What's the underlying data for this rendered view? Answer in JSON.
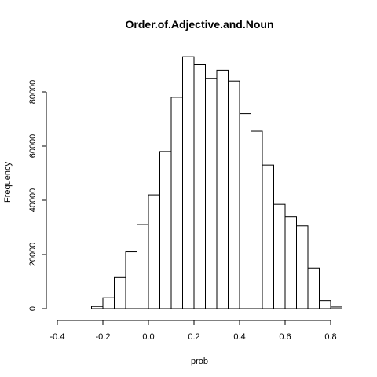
{
  "chart_data": {
    "type": "bar",
    "title": "Order.of.Adjective.and.Noun",
    "xlabel": "prob",
    "ylabel": "Frequency",
    "bin_width": 0.05,
    "bin_starts": [
      -0.4,
      -0.35,
      -0.3,
      -0.25,
      -0.2,
      -0.15,
      -0.1,
      -0.05,
      0.0,
      0.05,
      0.1,
      0.15,
      0.2,
      0.25,
      0.3,
      0.35,
      0.4,
      0.45,
      0.5,
      0.55,
      0.6,
      0.65,
      0.7,
      0.75,
      0.8
    ],
    "values": [
      0,
      0,
      0,
      800,
      4000,
      11500,
      21000,
      31000,
      42000,
      58000,
      78000,
      93000,
      90000,
      85000,
      88000,
      84000,
      72000,
      65500,
      53000,
      38500,
      34000,
      30500,
      15000,
      3000,
      600
    ],
    "xlim": [
      -0.4,
      0.85
    ],
    "ylim": [
      0,
      95000
    ],
    "x_ticks": [
      "-0.4",
      "-0.2",
      "0.0",
      "0.2",
      "0.4",
      "0.6",
      "0.8"
    ],
    "y_ticks": [
      "0",
      "20000",
      "40000",
      "60000",
      "80000"
    ]
  }
}
